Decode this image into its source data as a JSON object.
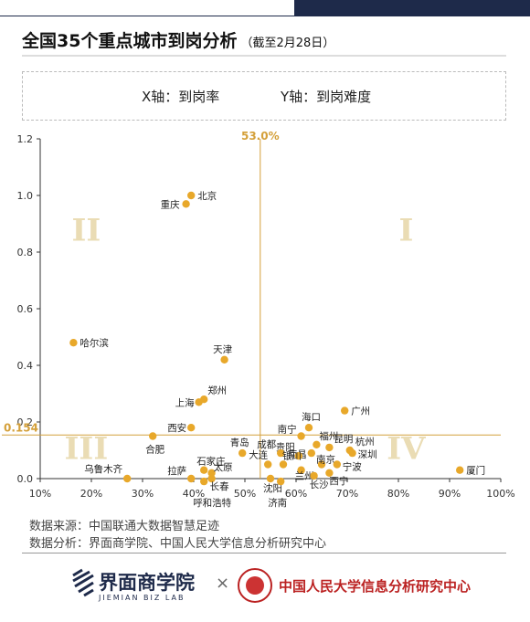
{
  "header": {
    "title": "全国35个重点城市到岗分析",
    "subtitle": "（截至2月28日）"
  },
  "legend": {
    "x_text": "X轴：到岗率",
    "y_text": "Y轴：到岗难度"
  },
  "colors": {
    "accent": "#d4a03a",
    "point": "#e8a82a",
    "quadrant": "#eadcb4",
    "navy": "#1e2a4a"
  },
  "chart_data": {
    "type": "scatter",
    "xlabel": "",
    "ylabel": "",
    "x_unit": "%",
    "xlim": [
      10,
      100
    ],
    "ylim": [
      0,
      1.2
    ],
    "x_ticks": [
      "10%",
      "20%",
      "30%",
      "40%",
      "50%",
      "60%",
      "70%",
      "80%",
      "90%",
      "100%"
    ],
    "y_ticks": [
      "0.0",
      "0.2",
      "0.4",
      "0.6",
      "0.8",
      "1.0",
      "1.2"
    ],
    "ref_x": {
      "value": 53.0,
      "label": "53.0%"
    },
    "ref_y": {
      "value": 0.154,
      "label": "0.154"
    },
    "quadrants": [
      "I",
      "II",
      "III",
      "IV"
    ],
    "grid": false,
    "points": [
      {
        "name": "北京",
        "x": 39.5,
        "y": 1.0
      },
      {
        "name": "重庆",
        "x": 38.5,
        "y": 0.97
      },
      {
        "name": "哈尔滨",
        "x": 16.5,
        "y": 0.48
      },
      {
        "name": "天津",
        "x": 46,
        "y": 0.42
      },
      {
        "name": "郑州",
        "x": 42,
        "y": 0.28
      },
      {
        "name": "上海",
        "x": 41,
        "y": 0.27
      },
      {
        "name": "西安",
        "x": 39.5,
        "y": 0.18
      },
      {
        "name": "合肥",
        "x": 32,
        "y": 0.15
      },
      {
        "name": "乌鲁木齐",
        "x": 27,
        "y": 0.0
      },
      {
        "name": "广州",
        "x": 69.5,
        "y": 0.24
      },
      {
        "name": "海口",
        "x": 62.5,
        "y": 0.18
      },
      {
        "name": "南宁",
        "x": 61,
        "y": 0.15
      },
      {
        "name": "福州",
        "x": 64,
        "y": 0.12
      },
      {
        "name": "昆明",
        "x": 66.5,
        "y": 0.11
      },
      {
        "name": "杭州",
        "x": 70.5,
        "y": 0.1
      },
      {
        "name": "深圳",
        "x": 71,
        "y": 0.09
      },
      {
        "name": "南昌",
        "x": 63,
        "y": 0.09
      },
      {
        "name": "贵阳",
        "x": 60.5,
        "y": 0.08
      },
      {
        "name": "成都",
        "x": 57,
        "y": 0.09
      },
      {
        "name": "青岛",
        "x": 49.5,
        "y": 0.09
      },
      {
        "name": "大连",
        "x": 54.5,
        "y": 0.05
      },
      {
        "name": "银川",
        "x": 57.5,
        "y": 0.05
      },
      {
        "name": "南京",
        "x": 65,
        "y": 0.05
      },
      {
        "name": "宁波",
        "x": 68,
        "y": 0.05
      },
      {
        "name": "西宁",
        "x": 66.5,
        "y": 0.02
      },
      {
        "name": "兰州",
        "x": 61,
        "y": 0.03
      },
      {
        "name": "长沙",
        "x": 63.5,
        "y": 0.01
      },
      {
        "name": "石家庄",
        "x": 42,
        "y": 0.03
      },
      {
        "name": "太原",
        "x": 43.5,
        "y": 0.02
      },
      {
        "name": "拉萨",
        "x": 39.5,
        "y": 0.0
      },
      {
        "name": "长春",
        "x": 43.5,
        "y": 0.0
      },
      {
        "name": "呼和浩特",
        "x": 42,
        "y": -0.01
      },
      {
        "name": "沈阳",
        "x": 55,
        "y": 0.0
      },
      {
        "name": "济南",
        "x": 57,
        "y": -0.01
      },
      {
        "name": "厦门",
        "x": 92,
        "y": 0.03
      }
    ]
  },
  "footer": {
    "source": "数据来源：中国联通大数据智慧足迹",
    "analysis": "数据分析：界面商学院、中国人民大学信息分析研究中心"
  },
  "logos": {
    "jiemian": "界面商学院",
    "jiemian_en": "JIEMIAN BIZ LAB",
    "times": "×",
    "ruc": "中国人民大学信息分析研究中心"
  }
}
